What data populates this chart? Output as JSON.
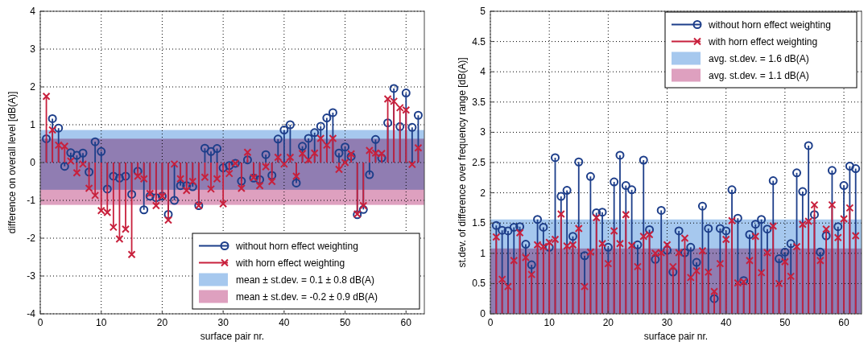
{
  "chart_data": [
    {
      "type": "lollipop",
      "xlabel": "surface pair nr.",
      "ylabel": "difference on overall level [dB(A)]",
      "xlim": [
        0,
        63
      ],
      "ylim": [
        -4,
        4
      ],
      "xticks": [
        0,
        10,
        20,
        30,
        40,
        50,
        60
      ],
      "yticks": [
        -4,
        -3,
        -2,
        -1,
        0,
        1,
        2,
        3,
        4
      ],
      "grid": true,
      "legend": "bottom right",
      "x": [
        1,
        2,
        3,
        4,
        5,
        6,
        7,
        8,
        9,
        10,
        11,
        12,
        13,
        14,
        15,
        16,
        17,
        18,
        19,
        20,
        21,
        22,
        23,
        24,
        25,
        26,
        27,
        28,
        29,
        30,
        31,
        32,
        33,
        34,
        35,
        36,
        37,
        38,
        39,
        40,
        41,
        42,
        43,
        44,
        45,
        46,
        47,
        48,
        49,
        50,
        51,
        52,
        53,
        54,
        55,
        56,
        57,
        58,
        59,
        60,
        61,
        62
      ],
      "series": [
        {
          "name": "without horn effect weighting",
          "color": "#1d3e8a",
          "marker": "circle",
          "values": [
            0.63,
            1.16,
            0.91,
            -0.1,
            0.26,
            0.19,
            0.25,
            -0.25,
            0.55,
            0.29,
            -0.7,
            -0.36,
            -0.41,
            -0.36,
            -0.84,
            -0.23,
            -1.25,
            -0.89,
            -0.93,
            -0.89,
            -1.37,
            -1.0,
            -0.61,
            -0.61,
            -0.64,
            -1.14,
            0.38,
            0.29,
            0.37,
            -0.14,
            -0.08,
            -0.02,
            -0.49,
            0.07,
            -0.41,
            -0.45,
            0.21,
            -0.34,
            0.62,
            0.86,
            1.0,
            -0.54,
            0.43,
            0.64,
            0.79,
            0.96,
            1.18,
            1.32,
            0.25,
            0.41,
            0.16,
            -1.38,
            -1.24,
            -0.32,
            0.61,
            0.12,
            1.05,
            1.96,
            0.95,
            1.84,
            0.93,
            1.25
          ]
        },
        {
          "name": "with horn effect weighting",
          "color": "#c8203c",
          "marker": "cross",
          "values": [
            1.75,
            0.86,
            0.46,
            0.43,
            0.04,
            -0.27,
            -0.04,
            -0.68,
            -0.87,
            -1.27,
            -1.32,
            -1.71,
            -2.02,
            -1.76,
            -2.43,
            -0.36,
            -0.43,
            -0.82,
            -1.14,
            -0.89,
            -1.52,
            -0.04,
            -0.43,
            -0.74,
            -0.5,
            -1.14,
            -0.39,
            -0.7,
            -0.43,
            -1.09,
            -0.29,
            -0.02,
            -0.68,
            0.27,
            -0.4,
            -0.61,
            -0.11,
            -0.5,
            0.14,
            -0.04,
            0.14,
            -0.36,
            0.24,
            0.07,
            0.25,
            0.64,
            0.46,
            0.64,
            -0.18,
            0.0,
            0.23,
            -1.36,
            -1.14,
            0.32,
            0.25,
            0.24,
            1.68,
            1.62,
            1.45,
            1.39,
            -0.05,
            0.39
          ]
        }
      ],
      "bands": [
        {
          "axis": "y",
          "from": -0.72,
          "to": 0.86,
          "label": "mean ± st.dev. = 0.1 ± 0.8 dB(A)",
          "color": "#a6c8ee"
        },
        {
          "axis": "y",
          "from": -1.12,
          "to": 0.63,
          "label": "mean ± st.dev. = -0.2 ± 0.9 dB(A)",
          "color": "#dea0bf"
        }
      ]
    },
    {
      "type": "lollipop",
      "xlabel": "surface pair nr.",
      "ylabel": "st.dev. of difference over frequency range [dB(A)]",
      "xlim": [
        0,
        63
      ],
      "ylim": [
        0,
        5
      ],
      "xticks": [
        0,
        10,
        20,
        30,
        40,
        50,
        60
      ],
      "yticks": [
        0,
        0.5,
        1,
        1.5,
        2,
        2.5,
        3,
        3.5,
        4,
        4.5,
        5
      ],
      "grid": true,
      "legend": "top right",
      "x": [
        1,
        2,
        3,
        4,
        5,
        6,
        7,
        8,
        9,
        10,
        11,
        12,
        13,
        14,
        15,
        16,
        17,
        18,
        19,
        20,
        21,
        22,
        23,
        24,
        25,
        26,
        27,
        28,
        29,
        30,
        31,
        32,
        33,
        34,
        35,
        36,
        37,
        38,
        39,
        40,
        41,
        42,
        43,
        44,
        45,
        46,
        47,
        48,
        49,
        50,
        51,
        52,
        53,
        54,
        55,
        56,
        57,
        58,
        59,
        60,
        61,
        62
      ],
      "series": [
        {
          "name": "without horn effect weighting",
          "color": "#1d3e8a",
          "marker": "circle",
          "values": [
            1.46,
            1.38,
            1.37,
            1.43,
            1.44,
            1.15,
            0.81,
            1.56,
            1.43,
            1.1,
            2.58,
            1.94,
            2.04,
            1.28,
            2.51,
            0.96,
            2.27,
            1.67,
            1.68,
            1.1,
            2.18,
            2.62,
            2.12,
            2.05,
            1.14,
            2.54,
            1.39,
            0.9,
            1.71,
            1.05,
            0.69,
            1.37,
            1.01,
            1.1,
            0.85,
            1.78,
            1.41,
            0.25,
            1.41,
            1.37,
            2.05,
            1.58,
            0.55,
            1.31,
            1.48,
            1.56,
            1.4,
            2.2,
            0.91,
            1.02,
            1.16,
            2.33,
            2.02,
            2.78,
            1.64,
            1.02,
            1.29,
            2.37,
            1.44,
            2.12,
            2.44,
            2.4
          ]
        },
        {
          "name": "with horn effect weighting",
          "color": "#c8203c",
          "marker": "cross",
          "values": [
            1.27,
            0.57,
            0.45,
            0.88,
            1.34,
            0.93,
            0.65,
            1.14,
            1.11,
            1.18,
            1.23,
            1.65,
            1.12,
            1.14,
            1.41,
            0.45,
            1.02,
            1.59,
            1.16,
            0.83,
            1.37,
            1.16,
            1.64,
            1.13,
            0.78,
            1.28,
            1.31,
            1.0,
            1.01,
            1.14,
            0.78,
            1.01,
            1.25,
            0.6,
            0.71,
            1.04,
            0.69,
            0.37,
            0.83,
            1.23,
            1.54,
            0.51,
            0.53,
            0.88,
            1.28,
            0.68,
            1.01,
            1.45,
            0.5,
            0.86,
            0.62,
            1.11,
            1.48,
            1.53,
            1.8,
            0.88,
            1.4,
            1.8,
            1.26,
            1.57,
            1.75,
            1.29
          ]
        }
      ],
      "bands": [
        {
          "axis": "y",
          "from": 0,
          "to": 1.56,
          "label": "avg. st.dev. = 1.6 dB(A)",
          "color": "#a6c8ee"
        },
        {
          "axis": "y",
          "from": 0,
          "to": 1.08,
          "label": "avg. st.dev. = 1.1 dB(A)",
          "color": "#dea0bf"
        }
      ]
    }
  ]
}
